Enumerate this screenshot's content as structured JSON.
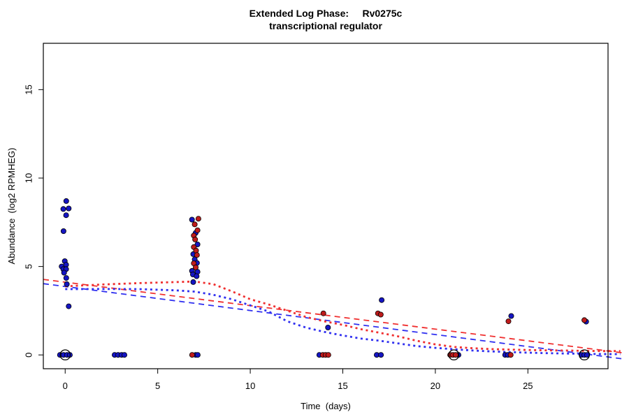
{
  "title": {
    "line1": "Extended Log Phase:     Rv0275c",
    "line2": "transcriptional regulator"
  },
  "chart_data": {
    "type": "scatter",
    "title": "Extended Log Phase:     Rv0275c",
    "subtitle": "transcriptional regulator",
    "xlabel": "Time  (days)",
    "ylabel": "Abundance  (log2 RPMHEG)",
    "xlim": [
      -1.18,
      29.33
    ],
    "ylim": [
      -0.78,
      17.62
    ],
    "xticks": [
      0,
      5,
      10,
      15,
      20,
      25
    ],
    "yticks": [
      0,
      5,
      10,
      15
    ],
    "grid": false,
    "legend": false,
    "colors": {
      "blue_points": "#1515c2",
      "red_points": "#bf1b1b",
      "blue_line": "#3030f0",
      "red_line": "#f03030",
      "ring": "#000000"
    },
    "series": [
      {
        "name": "blue-replicates",
        "type": "points",
        "color": "#1515c2",
        "points": [
          [
            0.06,
            8.7
          ],
          [
            -0.1,
            8.25
          ],
          [
            0.19,
            8.28
          ],
          [
            0.05,
            7.9
          ],
          [
            -0.09,
            7.0
          ],
          [
            -0.02,
            5.3
          ],
          [
            0.05,
            5.1
          ],
          [
            -0.19,
            5.0
          ],
          [
            -0.1,
            4.85
          ],
          [
            0.05,
            4.85
          ],
          [
            -0.06,
            4.65
          ],
          [
            0.06,
            4.35
          ],
          [
            0.09,
            4.0
          ],
          [
            0.19,
            2.75
          ],
          [
            -0.28,
            0
          ],
          [
            -0.09,
            0
          ],
          [
            0.1,
            0
          ],
          [
            0.25,
            0
          ],
          [
            2.67,
            0
          ],
          [
            2.86,
            0
          ],
          [
            3.05,
            0
          ],
          [
            3.2,
            0
          ],
          [
            6.85,
            7.65
          ],
          [
            7.05,
            6.9
          ],
          [
            7.15,
            6.25
          ],
          [
            6.92,
            5.7
          ],
          [
            7.0,
            5.4
          ],
          [
            7.12,
            5.2
          ],
          [
            6.85,
            4.75
          ],
          [
            7.15,
            4.7
          ],
          [
            6.9,
            4.55
          ],
          [
            7.1,
            4.45
          ],
          [
            6.92,
            4.12
          ],
          [
            7.05,
            0
          ],
          [
            7.16,
            0
          ],
          [
            14.2,
            1.55
          ],
          [
            13.73,
            0
          ],
          [
            17.1,
            3.1
          ],
          [
            16.83,
            0
          ],
          [
            17.06,
            0
          ],
          [
            21.25,
            0
          ],
          [
            24.1,
            2.2
          ],
          [
            23.77,
            0
          ],
          [
            23.92,
            0
          ],
          [
            28.15,
            1.88
          ],
          [
            27.9,
            0
          ],
          [
            28.05,
            0
          ],
          [
            28.2,
            0
          ]
        ]
      },
      {
        "name": "red-replicates",
        "type": "points",
        "color": "#bf1b1b",
        "points": [
          [
            7.2,
            7.7
          ],
          [
            7.0,
            7.38
          ],
          [
            7.15,
            7.05
          ],
          [
            6.95,
            6.75
          ],
          [
            7.02,
            6.53
          ],
          [
            6.95,
            6.1
          ],
          [
            7.07,
            5.9
          ],
          [
            7.12,
            5.65
          ],
          [
            6.95,
            5.18
          ],
          [
            7.05,
            4.95
          ],
          [
            6.86,
            0
          ],
          [
            13.95,
            2.35
          ],
          [
            13.92,
            0
          ],
          [
            14.07,
            0
          ],
          [
            14.22,
            0
          ],
          [
            16.9,
            2.35
          ],
          [
            17.05,
            2.28
          ],
          [
            20.8,
            0
          ],
          [
            20.95,
            0
          ],
          [
            21.1,
            0
          ],
          [
            23.95,
            1.9
          ],
          [
            24.07,
            0
          ],
          [
            28.05,
            1.97
          ]
        ]
      },
      {
        "name": "zero-ring-markers",
        "type": "open-circles",
        "color": "#000000",
        "points": [
          [
            0.0,
            0
          ],
          [
            21.0,
            0
          ],
          [
            28.05,
            0
          ]
        ]
      },
      {
        "name": "red-dashed-trend",
        "type": "line",
        "style": "dashed",
        "color": "#f03030",
        "points": [
          [
            -1.18,
            4.27
          ],
          [
            30.1,
            0.12
          ]
        ]
      },
      {
        "name": "blue-dashed-trend",
        "type": "line",
        "style": "dashed",
        "color": "#3030f0",
        "points": [
          [
            -1.18,
            4.03
          ],
          [
            30.1,
            -0.22
          ]
        ]
      },
      {
        "name": "red-dotted-trend",
        "type": "line",
        "style": "dotted",
        "color": "#f03030",
        "points": [
          [
            0,
            3.88
          ],
          [
            2,
            3.98
          ],
          [
            4,
            4.06
          ],
          [
            6,
            4.12
          ],
          [
            7,
            4.15
          ],
          [
            8,
            4.0
          ],
          [
            9,
            3.6
          ],
          [
            10,
            3.15
          ],
          [
            11,
            2.85
          ],
          [
            12,
            2.5
          ],
          [
            13,
            2.15
          ],
          [
            14,
            1.9
          ],
          [
            15,
            1.7
          ],
          [
            16,
            1.45
          ],
          [
            17,
            1.25
          ],
          [
            18,
            1.05
          ],
          [
            19,
            0.8
          ],
          [
            20,
            0.6
          ],
          [
            21,
            0.45
          ],
          [
            22,
            0.38
          ],
          [
            23,
            0.33
          ],
          [
            24,
            0.3
          ],
          [
            25,
            0.28
          ],
          [
            26,
            0.26
          ],
          [
            27,
            0.25
          ],
          [
            28,
            0.23
          ],
          [
            29,
            0.22
          ],
          [
            30,
            0.22
          ]
        ]
      },
      {
        "name": "blue-dotted-trend",
        "type": "line",
        "style": "dotted",
        "color": "#3030f0",
        "points": [
          [
            0,
            3.72
          ],
          [
            2,
            3.73
          ],
          [
            4,
            3.72
          ],
          [
            6,
            3.65
          ],
          [
            7,
            3.58
          ],
          [
            8,
            3.4
          ],
          [
            9,
            3.15
          ],
          [
            10,
            2.8
          ],
          [
            11,
            2.45
          ],
          [
            12,
            1.9
          ],
          [
            13,
            1.55
          ],
          [
            14,
            1.3
          ],
          [
            15,
            1.1
          ],
          [
            16,
            0.92
          ],
          [
            17,
            0.8
          ],
          [
            18,
            0.65
          ],
          [
            19,
            0.5
          ],
          [
            20,
            0.4
          ],
          [
            21,
            0.32
          ],
          [
            22,
            0.25
          ],
          [
            23,
            0.2
          ],
          [
            24,
            0.16
          ],
          [
            25,
            0.13
          ],
          [
            26,
            0.1
          ],
          [
            27,
            0.08
          ],
          [
            28,
            0.06
          ],
          [
            29,
            0.05
          ],
          [
            30,
            0.04
          ]
        ]
      }
    ]
  }
}
